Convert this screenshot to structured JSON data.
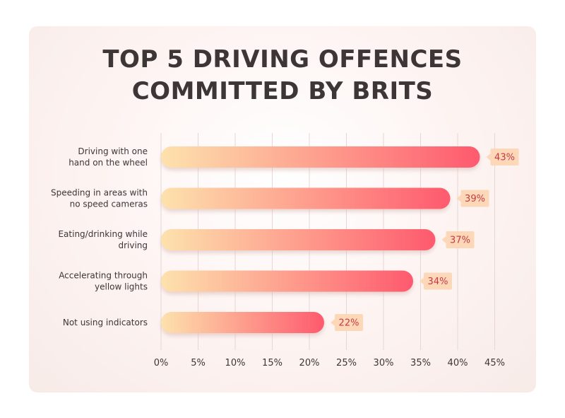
{
  "title_lines": [
    "TOP 5 DRIVING OFFENCES",
    "COMMITTED BY BRITS"
  ],
  "colors": {
    "bar_start": "#fde2ad",
    "bar_end": "#fe5a6e",
    "label_bg": "#fdd8b8",
    "label_text": "#c63a45",
    "grid": "#e7d6d3",
    "text": "#3d3637"
  },
  "chart_data": {
    "type": "bar",
    "orientation": "horizontal",
    "title": "TOP 5 DRIVING OFFENCES COMMITTED BY BRITS",
    "categories": [
      [
        "Driving with one",
        "hand on the wheel"
      ],
      [
        "Speeding in areas with",
        "no speed cameras"
      ],
      [
        "Eating/drinking while",
        "driving"
      ],
      [
        "Accelerating through",
        "yellow lights"
      ],
      [
        "Not using indicators"
      ]
    ],
    "values": [
      43,
      39,
      37,
      34,
      22
    ],
    "value_labels": [
      "43%",
      "39%",
      "37%",
      "34%",
      "22%"
    ],
    "xlim": [
      0,
      45
    ],
    "xticks": [
      0,
      5,
      10,
      15,
      20,
      25,
      30,
      35,
      40,
      45
    ],
    "xtick_labels": [
      "0%",
      "5%",
      "10%",
      "15%",
      "20%",
      "25%",
      "30%",
      "35%",
      "40%",
      "45%"
    ],
    "grid": "vertical",
    "legend": "none"
  }
}
